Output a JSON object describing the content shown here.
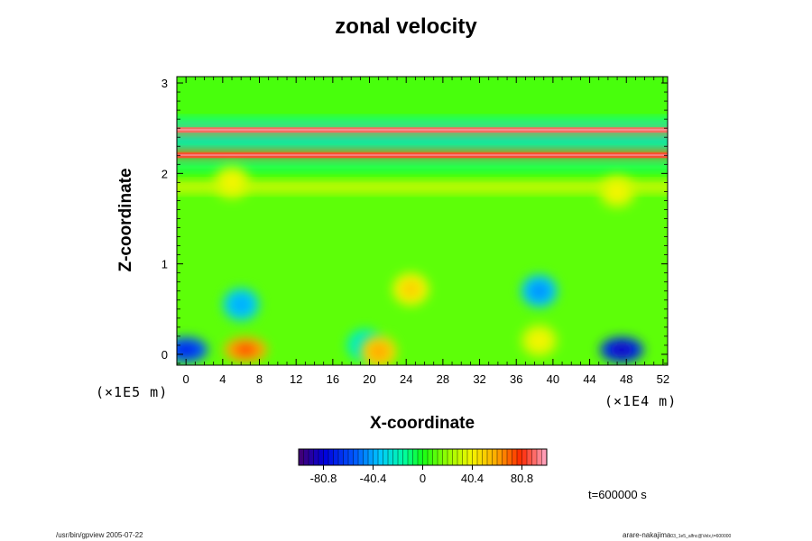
{
  "chart_data": {
    "type": "heatmap",
    "title": "zonal velocity",
    "xlabel": "X-coordinate",
    "ylabel": "Z-coordinate",
    "x_unit": "(×1E4 m)",
    "z_unit": "(×1E5 m)",
    "xlim": [
      -1,
      52.5
    ],
    "ylim": [
      -0.12,
      3.07
    ],
    "x_ticks": [
      "0",
      "4",
      "8",
      "12",
      "16",
      "20",
      "24",
      "28",
      "32",
      "36",
      "40",
      "44",
      "48",
      "52"
    ],
    "x_tick_values": [
      0,
      4,
      8,
      12,
      16,
      20,
      24,
      28,
      32,
      36,
      40,
      44,
      48,
      52
    ],
    "y_ticks": [
      "0",
      "1",
      "2",
      "3"
    ],
    "y_tick_values": [
      0,
      1,
      2,
      3
    ],
    "colorbar": {
      "range": [
        -101,
        101
      ],
      "tick_labels": [
        "-80.8",
        "-40.4",
        "0",
        "40.4",
        "80.8"
      ],
      "tick_values": [
        -80.8,
        -40.4,
        0,
        40.4,
        80.8
      ]
    },
    "field_bands": [
      {
        "z": 2.48,
        "value": 90
      },
      {
        "z": 2.2,
        "value": 85
      },
      {
        "z": 2.55,
        "value": -15
      },
      {
        "z": 2.35,
        "value": -30
      },
      {
        "z": 2.1,
        "value": -10
      },
      {
        "z": 1.85,
        "value": 35
      }
    ],
    "features": [
      {
        "x": 6.5,
        "z": 0.05,
        "value": 75
      },
      {
        "x": 47.5,
        "z": 0.05,
        "value": -85
      },
      {
        "x": 0,
        "z": 0.05,
        "value": -70
      },
      {
        "x": 6,
        "z": 0.55,
        "value": -40
      },
      {
        "x": 38.5,
        "z": 0.7,
        "value": -45
      },
      {
        "x": 19.5,
        "z": 0.1,
        "value": -25
      },
      {
        "x": 38.5,
        "z": 0.15,
        "value": 40
      },
      {
        "x": 21,
        "z": 0.03,
        "value": 60
      },
      {
        "x": 5,
        "z": 1.9,
        "value": 40
      },
      {
        "x": 47,
        "z": 1.8,
        "value": 40
      },
      {
        "x": 24.5,
        "z": 0.72,
        "value": 50
      }
    ],
    "time_label": "t=600000 s"
  },
  "footer": {
    "left": "/usr/bin/gpview 2005-07-22",
    "right_main": "arare-nakajima",
    "right_small": "03_1e5_alfnc@Velx,t=600000"
  }
}
